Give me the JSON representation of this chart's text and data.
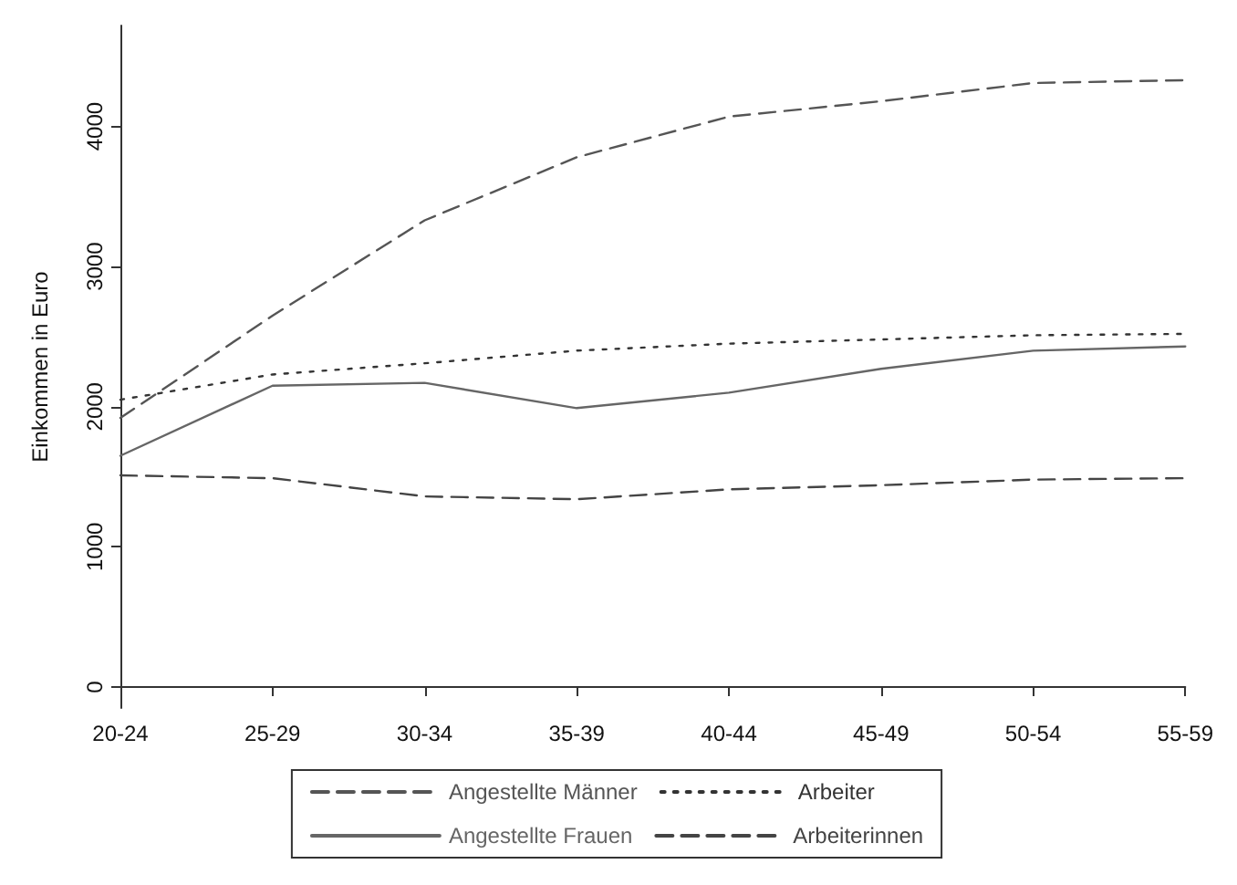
{
  "chart_data": {
    "type": "line",
    "ylabel": "Einkommen in Euro",
    "categories": [
      "20-24",
      "25-29",
      "30-34",
      "35-39",
      "40-44",
      "45-49",
      "50-54",
      "55-59"
    ],
    "ylim": [
      -150,
      4720
    ],
    "yticks": [
      0,
      1000,
      2000,
      3000,
      4000
    ],
    "grid": false,
    "legend": "bottom",
    "marker": "none",
    "series": [
      {
        "name": "Angestellte Männer",
        "color": "#555555",
        "line_style": "dashed",
        "values": [
          1920,
          2650,
          3330,
          3780,
          4070,
          4180,
          4310,
          4330
        ]
      },
      {
        "name": "Arbeiter",
        "color": "#333333",
        "line_style": "dotted",
        "values": [
          2050,
          2230,
          2310,
          2400,
          2450,
          2480,
          2510,
          2520
        ]
      },
      {
        "name": "Angestellte Frauen",
        "color": "#666666",
        "line_style": "solid",
        "values": [
          1650,
          2150,
          2170,
          1990,
          2100,
          2270,
          2400,
          2430
        ]
      },
      {
        "name": "Arbeiterinnen",
        "color": "#444444",
        "line_style": "dashed",
        "values": [
          1510,
          1490,
          1360,
          1340,
          1410,
          1440,
          1480,
          1490
        ]
      }
    ]
  }
}
